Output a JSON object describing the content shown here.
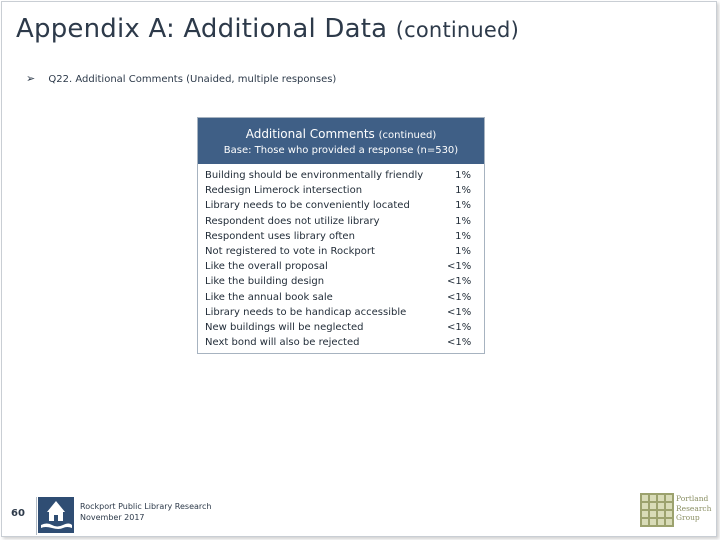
{
  "header": {
    "title_main": "Appendix A: Additional Data",
    "title_cont": "(continued)"
  },
  "question": {
    "arrow": "➢",
    "text": "Q22. Additional Comments (Unaided, multiple responses)"
  },
  "table": {
    "heading": "Additional Comments",
    "heading_cont": "(continued)",
    "base": "Base: Those who provided a response (n=530)",
    "header_color": "#3f5f86",
    "rows": [
      {
        "label": "Building should be environmentally friendly",
        "value": "1%"
      },
      {
        "label": "Redesign Limerock intersection",
        "value": "1%"
      },
      {
        "label": "Library needs to be conveniently located",
        "value": "1%"
      },
      {
        "label": "Respondent does not utilize library",
        "value": "1%"
      },
      {
        "label": "Respondent uses library often",
        "value": "1%"
      },
      {
        "label": "Not registered to vote in Rockport",
        "value": "1%"
      },
      {
        "label": "Like the overall proposal",
        "value": "<1%"
      },
      {
        "label": "Like the building design",
        "value": "<1%"
      },
      {
        "label": "Like the annual book sale",
        "value": "<1%"
      },
      {
        "label": "Library needs to be handicap accessible",
        "value": "<1%"
      },
      {
        "label": "New buildings will be neglected",
        "value": "<1%"
      },
      {
        "label": "Next bond will also be rejected",
        "value": "<1%"
      }
    ]
  },
  "footer": {
    "page_number": "60",
    "line1": "Rockport Public Library Research",
    "line2": "November 2017",
    "brand_line1": "Portland",
    "brand_line2": "Research",
    "brand_line3": "Group"
  }
}
